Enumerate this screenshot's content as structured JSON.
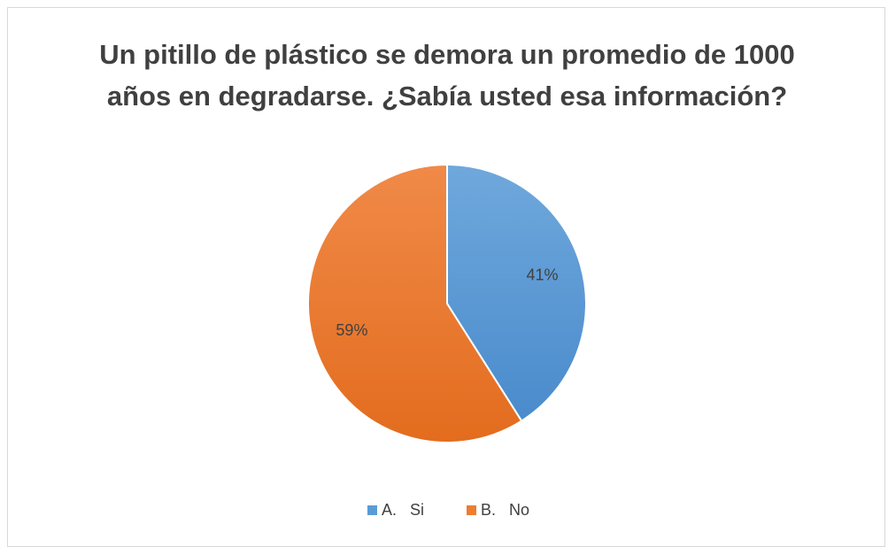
{
  "chart_data": {
    "type": "pie",
    "title": "Un pitillo de plástico se demora un promedio de 1000 años en degradarse. ¿Sabía usted esa información?",
    "categories": [
      "A.   Si",
      "B.   No"
    ],
    "values": [
      41,
      59
    ],
    "value_labels": [
      "41%",
      "59%"
    ],
    "colors": [
      "#5b9bd5",
      "#ed7d31"
    ],
    "legend": "bottom"
  }
}
